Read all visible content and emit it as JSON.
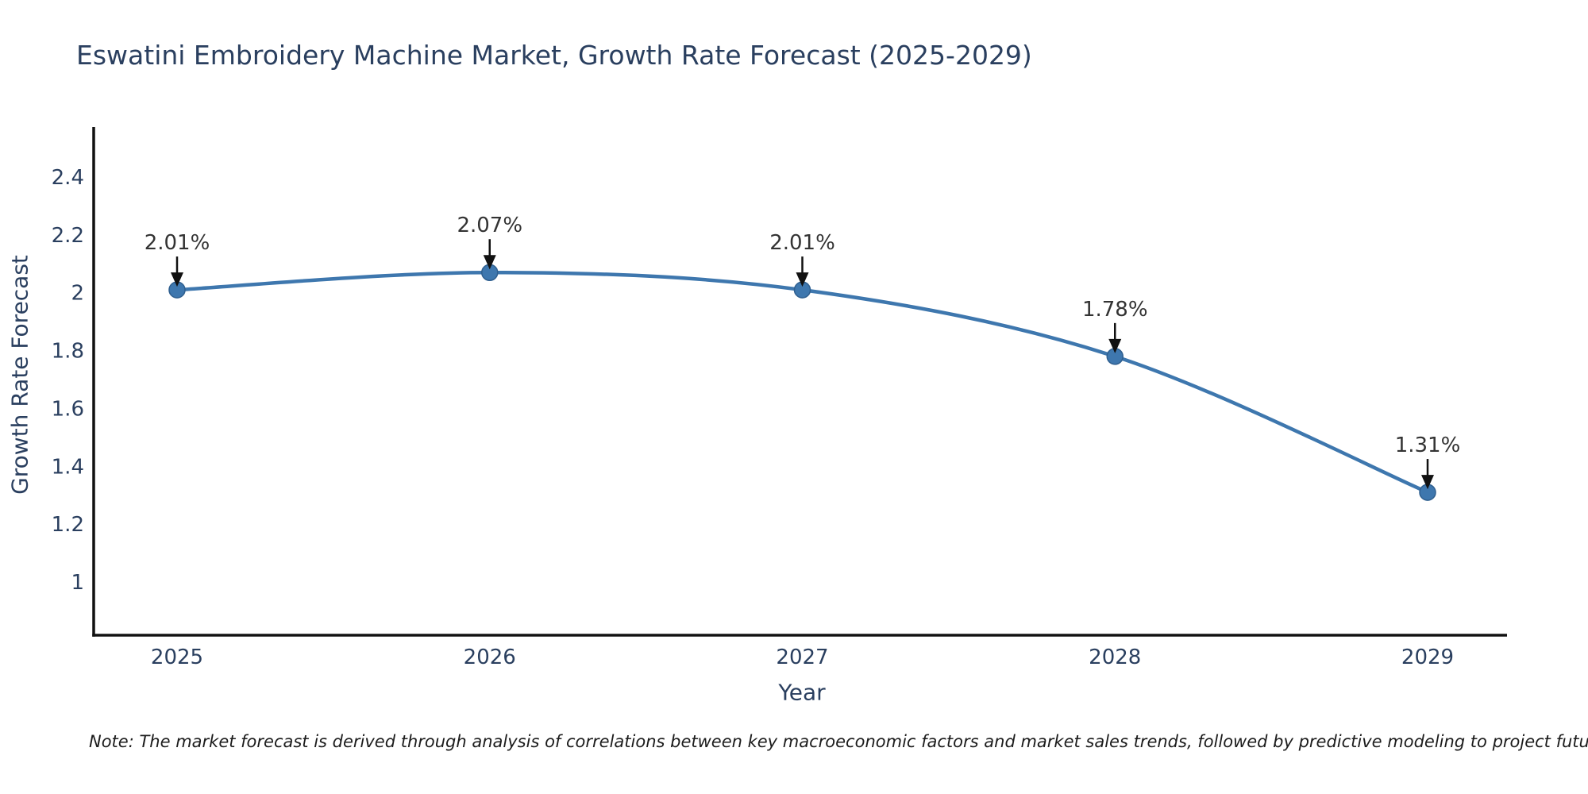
{
  "chart_data": {
    "type": "line",
    "title": "Eswatini Embroidery Machine Market, Growth Rate Forecast (2025-2029)",
    "xlabel": "Year",
    "ylabel": "Growth Rate Forecast",
    "categories": [
      "2025",
      "2026",
      "2027",
      "2028",
      "2029"
    ],
    "values": [
      2.01,
      2.07,
      2.01,
      1.78,
      1.31
    ],
    "point_labels": [
      "2.01%",
      "2.07%",
      "2.01%",
      "1.78%",
      "1.31%"
    ],
    "ytick_values": [
      1,
      1.2,
      1.4,
      1.6,
      1.8,
      2,
      2.2,
      2.4
    ],
    "ytick_labels": [
      "1",
      "1.2",
      "1.4",
      "1.6",
      "1.8",
      "2",
      "2.2",
      "2.4"
    ],
    "ylim": [
      0.82,
      2.57
    ],
    "grid": false,
    "legend": false,
    "line_shape": "spline",
    "colors": {
      "line": "#3e77ae",
      "marker": "#3e77ae",
      "marker_edge": "#2f5f8f",
      "axis": "#111111",
      "tick_text": "#2a3f5f",
      "annotation_text": "#333333",
      "arrow": "#111111",
      "title_text": "#2a3f5f",
      "background": "#ffffff"
    }
  },
  "note": "Note: The market forecast is derived through analysis of correlations between key macroeconomic factors and market sales trends, followed by predictive modeling to project future sales"
}
